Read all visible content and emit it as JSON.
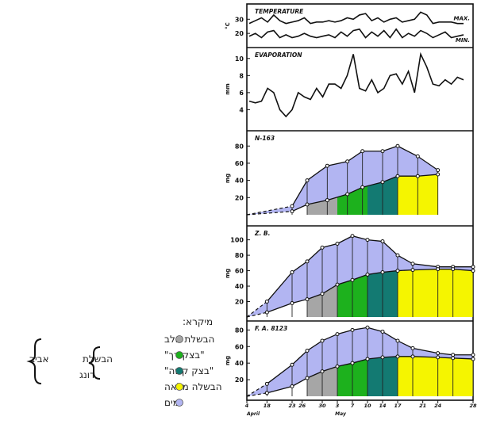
{
  "legend": {
    "title": "מיקרא:",
    "items": [
      {
        "label": "הבשלת חלב",
        "color": "#a6a6a6"
      },
      {
        "label": "\"בצק רך\"",
        "color": "#1db11d"
      },
      {
        "label": "\"בצק קשה\"",
        "color": "#137a72"
      },
      {
        "label": "הבשלה מלאה",
        "color": "#f5f500"
      },
      {
        "label": "מים",
        "color": "#b2b5f2"
      }
    ],
    "brace_inner": [
      "הבשלת",
      "דונג"
    ],
    "brace_outer": "אביב"
  },
  "chart_data": [
    {
      "type": "line",
      "title": "TEMPERATURE",
      "ylabel": "°C",
      "ylim": [
        10,
        38
      ],
      "yticks": [
        20,
        30
      ],
      "series": [
        {
          "name": "MAX.",
          "x": [
            0,
            1,
            2,
            3,
            4,
            5,
            6,
            7,
            8,
            9,
            10,
            11,
            12,
            13,
            14,
            15,
            16,
            17,
            18,
            19,
            20,
            21,
            22,
            23,
            24,
            25,
            26,
            27,
            28,
            29,
            30,
            31,
            32,
            33,
            34,
            35
          ],
          "values": [
            27,
            29,
            31,
            28,
            33,
            29,
            27,
            28,
            29,
            31,
            27,
            28,
            28,
            29,
            28,
            29,
            31,
            30,
            33,
            34,
            29,
            31,
            28,
            30,
            31,
            28,
            29,
            30,
            35,
            33,
            27,
            28,
            28,
            28,
            27,
            27
          ]
        },
        {
          "name": "MIN.",
          "x": [
            0,
            1,
            2,
            3,
            4,
            5,
            6,
            7,
            8,
            9,
            10,
            11,
            12,
            13,
            14,
            15,
            16,
            17,
            18,
            19,
            20,
            21,
            22,
            23,
            24,
            25,
            26,
            27,
            28,
            29,
            30,
            31,
            32,
            33,
            34,
            35
          ],
          "values": [
            18,
            20,
            17,
            21,
            22,
            17,
            19,
            17,
            18,
            20,
            18,
            17,
            18,
            19,
            17,
            21,
            18,
            22,
            23,
            17,
            21,
            18,
            22,
            17,
            23,
            17,
            20,
            18,
            22,
            20,
            17,
            19,
            21,
            17,
            18,
            19
          ]
        }
      ]
    },
    {
      "type": "line",
      "title": "EVAPORATION",
      "ylabel": "mm",
      "ylim": [
        2,
        11
      ],
      "yticks": [
        4,
        6,
        8,
        10
      ],
      "series": [
        {
          "name": "",
          "x": [
            0,
            1,
            2,
            3,
            4,
            5,
            6,
            7,
            8,
            9,
            10,
            11,
            12,
            13,
            14,
            15,
            16,
            17,
            18,
            19,
            20,
            21,
            22,
            23,
            24,
            25,
            26,
            27,
            28,
            29,
            30,
            31,
            32,
            33,
            34,
            35
          ],
          "values": [
            5,
            4.8,
            5,
            6.5,
            6,
            4,
            3.2,
            4,
            6,
            5.5,
            5.2,
            6.5,
            5.5,
            7,
            7,
            6.5,
            8,
            10.5,
            6.5,
            6.2,
            7.5,
            6,
            6.5,
            8,
            8.2,
            7,
            8.5,
            6,
            10.5,
            9,
            7,
            6.8,
            7.5,
            7,
            7.8,
            7.5
          ]
        }
      ]
    },
    {
      "type": "area",
      "title": "N-163",
      "ylabel": "mg",
      "ylim": [
        0,
        95
      ],
      "yticks": [
        20,
        40,
        60,
        80
      ],
      "total": {
        "x": [
          0,
          9,
          12,
          16,
          20,
          23,
          27,
          30,
          34,
          38
        ],
        "values": [
          0,
          10,
          40,
          57,
          62,
          74,
          74,
          80,
          68,
          52
        ]
      },
      "dry": {
        "x": [
          0,
          9,
          12,
          16,
          20,
          23,
          27,
          30,
          34,
          38
        ],
        "values": [
          0,
          4,
          12,
          17,
          24,
          32,
          38,
          45,
          45,
          47
        ]
      }
    },
    {
      "type": "area",
      "title": "Z. B.",
      "ylabel": "mg",
      "ylim": [
        0,
        115
      ],
      "yticks": [
        20,
        40,
        60,
        80,
        100
      ],
      "total": {
        "x": [
          0,
          4,
          9,
          12,
          15,
          18,
          21,
          24,
          27,
          30,
          33,
          38,
          41,
          45
        ],
        "values": [
          0,
          20,
          58,
          72,
          90,
          95,
          105,
          100,
          98,
          80,
          69,
          65,
          65,
          65
        ]
      },
      "dry": {
        "x": [
          0,
          4,
          9,
          12,
          15,
          18,
          21,
          24,
          27,
          30,
          33,
          38,
          41,
          45
        ],
        "values": [
          0,
          6,
          18,
          23,
          30,
          42,
          48,
          55,
          58,
          60,
          61,
          62,
          62,
          60
        ]
      }
    },
    {
      "type": "area",
      "title": "F. A. 8123",
      "ylabel": "mg",
      "ylim": [
        0,
        88
      ],
      "yticks": [
        20,
        40,
        60,
        80
      ],
      "xticks": [
        "4",
        "18",
        "23",
        "26",
        "30",
        "3",
        "7",
        "10",
        "14",
        "17",
        "21",
        "24",
        "28"
      ],
      "months": [
        "April",
        "May"
      ],
      "total": {
        "x": [
          0,
          4,
          9,
          12,
          15,
          18,
          21,
          24,
          27,
          30,
          33,
          38,
          41,
          45
        ],
        "values": [
          0,
          15,
          38,
          55,
          67,
          75,
          80,
          83,
          78,
          67,
          58,
          52,
          50,
          50
        ]
      },
      "dry": {
        "x": [
          0,
          4,
          9,
          12,
          15,
          18,
          21,
          24,
          27,
          30,
          33,
          38,
          41,
          45
        ],
        "values": [
          0,
          4,
          12,
          22,
          30,
          36,
          40,
          45,
          47,
          48,
          48,
          47,
          46,
          45
        ]
      }
    }
  ]
}
